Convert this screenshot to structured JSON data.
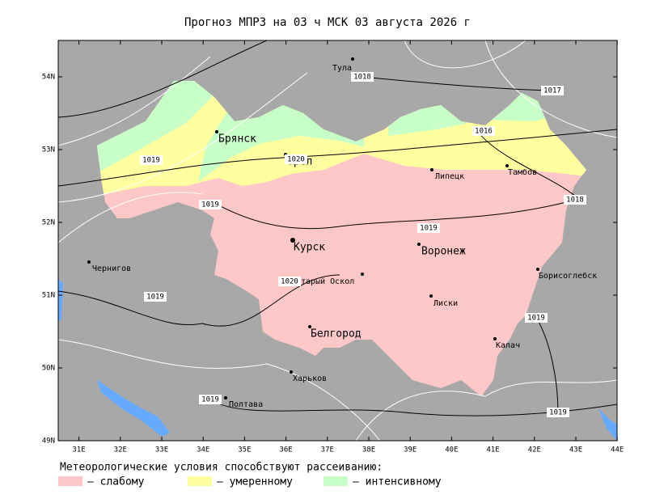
{
  "title": "Прогноз МПРЗ на 03 ч МСК 03 августа 2026 г",
  "latitude_labels": [
    "54N",
    "53N",
    "52N",
    "51N",
    "50N",
    "49N"
  ],
  "longitude_labels": [
    "31E",
    "32E",
    "33E",
    "34E",
    "35E",
    "36E",
    "37E",
    "38E",
    "39E",
    "40E",
    "41E",
    "42E",
    "43E",
    "44E"
  ],
  "cities": [
    "Тула",
    "Брянск",
    "Орел",
    "Липецк",
    "Тамбов",
    "Курск",
    "Воронеж",
    "Чернигов",
    "Старый Оскол",
    "Борисоглебск",
    "Лиски",
    "Белгород",
    "Калач",
    "Харьков",
    "Полтава"
  ],
  "isobar_labels": [
    "1018",
    "1017",
    "1016",
    "1019",
    "1019",
    "1020",
    "1019",
    "1018",
    "1020",
    "1019",
    "1019",
    "1019",
    "1019"
  ],
  "legend": {
    "title": "Метеорологические условия способствуют рассеиванию:",
    "items": [
      {
        "label": "– слабому",
        "color": "#ffc8c8"
      },
      {
        "label": "– умеренному",
        "color": "#ffffa0"
      },
      {
        "label": "– интенсивному",
        "color": "#c8ffc8"
      }
    ]
  }
}
